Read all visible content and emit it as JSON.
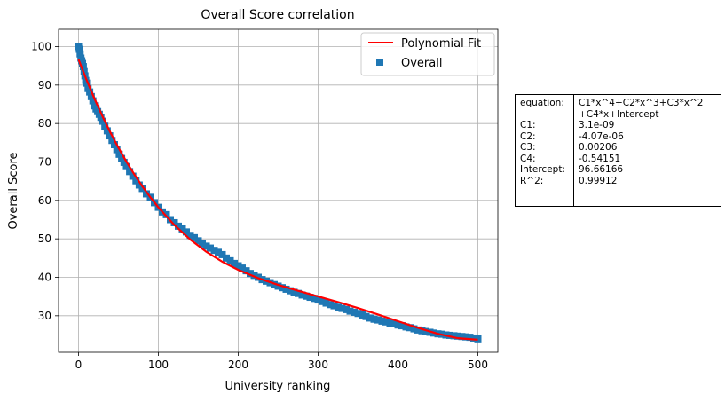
{
  "chart_data": {
    "type": "scatter",
    "title": "Overall Score correlation",
    "xlabel": "University ranking",
    "ylabel": "Overall Score",
    "xlim": [
      -25,
      525
    ],
    "ylim": [
      20.5,
      104.5
    ],
    "xticks": [
      0,
      100,
      200,
      300,
      400,
      500
    ],
    "yticks": [
      30,
      40,
      50,
      60,
      70,
      80,
      90,
      100
    ],
    "grid": true,
    "legend_position": "top-right",
    "series": [
      {
        "name": "Polynomial Fit",
        "kind": "line",
        "color": "#ff0000",
        "x": [
          0,
          10,
          20,
          30,
          40,
          50,
          60,
          70,
          80,
          90,
          100,
          120,
          140,
          160,
          180,
          200,
          225,
          250,
          275,
          300,
          325,
          350,
          375,
          400,
          425,
          450,
          475,
          500
        ],
        "y": [
          96.66,
          91.38,
          86.45,
          81.88,
          77.63,
          73.7,
          70.07,
          66.72,
          63.63,
          60.8,
          58.19,
          53.62,
          49.8,
          46.64,
          44.05,
          41.93,
          39.79,
          38.03,
          36.49,
          35.03,
          33.55,
          31.99,
          30.32,
          28.58,
          26.86,
          25.3,
          24.16,
          23.76
        ]
      },
      {
        "name": "Overall",
        "kind": "scatter",
        "color": "#1f77b4",
        "marker": "square",
        "x": [
          0,
          1,
          2,
          3,
          4,
          5,
          6,
          7,
          8,
          9,
          10,
          12,
          14,
          16,
          18,
          20,
          22,
          24,
          26,
          28,
          30,
          33,
          36,
          39,
          42,
          45,
          48,
          51,
          54,
          57,
          60,
          64,
          68,
          72,
          76,
          80,
          85,
          90,
          95,
          100,
          105,
          110,
          115,
          120,
          125,
          130,
          135,
          140,
          145,
          150,
          155,
          160,
          165,
          170,
          175,
          180,
          185,
          190,
          195,
          200,
          205,
          210,
          215,
          220,
          225,
          230,
          235,
          240,
          245,
          250,
          255,
          260,
          265,
          270,
          275,
          280,
          285,
          290,
          295,
          300,
          305,
          310,
          315,
          320,
          325,
          330,
          335,
          340,
          345,
          350,
          355,
          360,
          365,
          370,
          375,
          380,
          385,
          390,
          395,
          400,
          405,
          410,
          415,
          420,
          425,
          430,
          435,
          440,
          445,
          450,
          455,
          460,
          465,
          470,
          475,
          480,
          485,
          490,
          495,
          500
        ],
        "y": [
          100.0,
          99.3,
          98.1,
          97.0,
          96.3,
          95.6,
          94.8,
          93.5,
          92.4,
          91.2,
          90.5,
          89.1,
          88.2,
          87.0,
          85.9,
          84.6,
          83.8,
          83.1,
          82.4,
          81.6,
          80.6,
          79.3,
          78.1,
          76.8,
          75.6,
          74.5,
          73.2,
          72.0,
          70.9,
          69.9,
          68.8,
          67.5,
          66.3,
          65.1,
          64.0,
          63.1,
          61.7,
          60.8,
          59.4,
          58.2,
          57.0,
          56.3,
          55.0,
          54.2,
          53.3,
          52.6,
          51.8,
          50.9,
          50.3,
          49.5,
          48.7,
          48.1,
          47.6,
          47.0,
          46.5,
          45.9,
          45.0,
          44.3,
          43.6,
          43.0,
          42.4,
          41.7,
          41.0,
          40.5,
          40.0,
          39.4,
          39.0,
          38.6,
          38.1,
          37.7,
          37.3,
          36.9,
          36.5,
          36.1,
          35.8,
          35.4,
          35.1,
          34.8,
          34.5,
          34.1,
          33.7,
          33.3,
          32.9,
          32.6,
          32.2,
          31.9,
          31.6,
          31.2,
          30.9,
          30.6,
          30.2,
          29.8,
          29.4,
          29.1,
          28.9,
          28.6,
          28.4,
          28.1,
          27.9,
          27.6,
          27.4,
          27.1,
          26.9,
          26.6,
          26.3,
          26.1,
          25.9,
          25.7,
          25.5,
          25.3,
          25.2,
          25.0,
          24.9,
          24.8,
          24.7,
          24.6,
          24.5,
          24.4,
          24.2,
          24.0
        ]
      }
    ]
  },
  "fit_table": {
    "rows": [
      {
        "key": "equation:",
        "value": "C1*x^4+C2*x^3+C3*x^2"
      },
      {
        "key": "",
        "value": "+C4*x+Intercept"
      },
      {
        "key": "C1:",
        "value": "3.1e-09"
      },
      {
        "key": "C2:",
        "value": "-4.07e-06"
      },
      {
        "key": "C3:",
        "value": "0.00206"
      },
      {
        "key": "C4:",
        "value": "-0.54151"
      },
      {
        "key": "Intercept:",
        "value": "96.66166"
      },
      {
        "key": "R^2:",
        "value": "0.99912"
      }
    ]
  }
}
